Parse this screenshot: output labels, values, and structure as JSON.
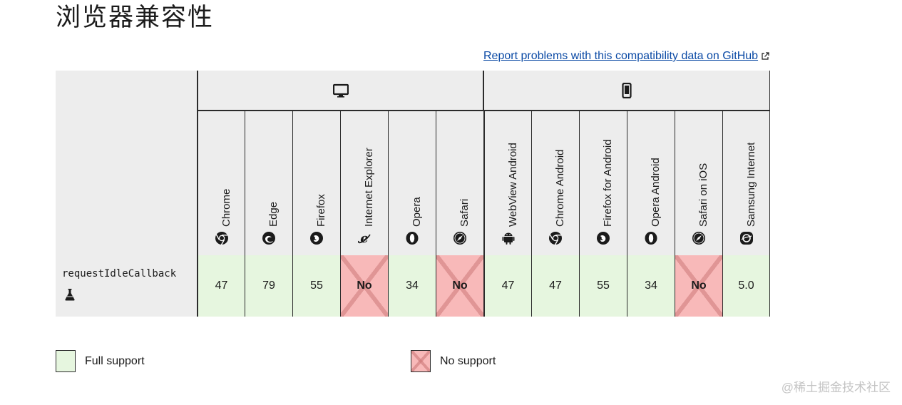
{
  "page": {
    "title": "浏览器兼容性",
    "report_link": "Report problems with this compatibility data on GitHub"
  },
  "table": {
    "platforms": [
      {
        "name": "desktop",
        "icon": "desktop-icon"
      },
      {
        "name": "mobile",
        "icon": "mobile-icon"
      }
    ],
    "browsers": [
      {
        "name": "Chrome",
        "icon": "chrome-icon"
      },
      {
        "name": "Edge",
        "icon": "edge-icon"
      },
      {
        "name": "Firefox",
        "icon": "firefox-icon"
      },
      {
        "name": "Internet Explorer",
        "icon": "ie-icon"
      },
      {
        "name": "Opera",
        "icon": "opera-icon"
      },
      {
        "name": "Safari",
        "icon": "safari-icon"
      },
      {
        "name": "WebView Android",
        "icon": "android-icon"
      },
      {
        "name": "Chrome Android",
        "icon": "chrome-icon"
      },
      {
        "name": "Firefox for Android",
        "icon": "firefox-icon"
      },
      {
        "name": "Opera Android",
        "icon": "opera-icon"
      },
      {
        "name": "Safari on iOS",
        "icon": "safari-icon"
      },
      {
        "name": "Samsung Internet",
        "icon": "samsung-internet-icon"
      }
    ],
    "feature": {
      "name": "requestIdleCallback",
      "icon": "experimental-flask-icon",
      "support": [
        {
          "value": "47",
          "status": "yes"
        },
        {
          "value": "79",
          "status": "yes"
        },
        {
          "value": "55",
          "status": "yes"
        },
        {
          "value": "No",
          "status": "no"
        },
        {
          "value": "34",
          "status": "yes"
        },
        {
          "value": "No",
          "status": "no"
        },
        {
          "value": "47",
          "status": "yes"
        },
        {
          "value": "47",
          "status": "yes"
        },
        {
          "value": "55",
          "status": "yes"
        },
        {
          "value": "34",
          "status": "yes"
        },
        {
          "value": "No",
          "status": "no"
        },
        {
          "value": "5.0",
          "status": "yes"
        }
      ]
    }
  },
  "legend": {
    "full_support": "Full support",
    "no_support": "No support"
  },
  "colors": {
    "full_support_bg": "#e6f6df",
    "no_support_bg": "#f8b9b9",
    "header_bg": "#ededed",
    "link": "#0b4aa5"
  },
  "watermark": "@稀土掘金技术社区"
}
